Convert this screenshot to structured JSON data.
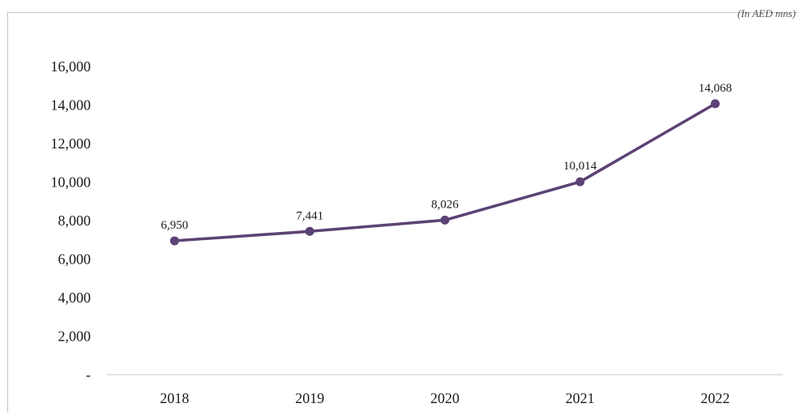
{
  "unit_note": "(In AED mns)",
  "chart_data": {
    "type": "line",
    "title": "",
    "xlabel": "",
    "ylabel": "",
    "categories": [
      "2018",
      "2019",
      "2020",
      "2021",
      "2022"
    ],
    "series": [
      {
        "values": [
          6950,
          7441,
          8026,
          10014,
          14068
        ],
        "data_labels": [
          "6,950",
          "7,441",
          "8,026",
          "10,014",
          "14,068"
        ]
      }
    ],
    "ylim": [
      0,
      16000
    ],
    "yticks": [
      0,
      2000,
      4000,
      6000,
      8000,
      10000,
      12000,
      14000,
      16000
    ],
    "ytick_labels": [
      "-",
      "2,000",
      "4,000",
      "6,000",
      "8,000",
      "10,000",
      "12,000",
      "14,000",
      "16,000"
    ],
    "grid": false,
    "legend": "none",
    "line_color": "#5c4275"
  }
}
